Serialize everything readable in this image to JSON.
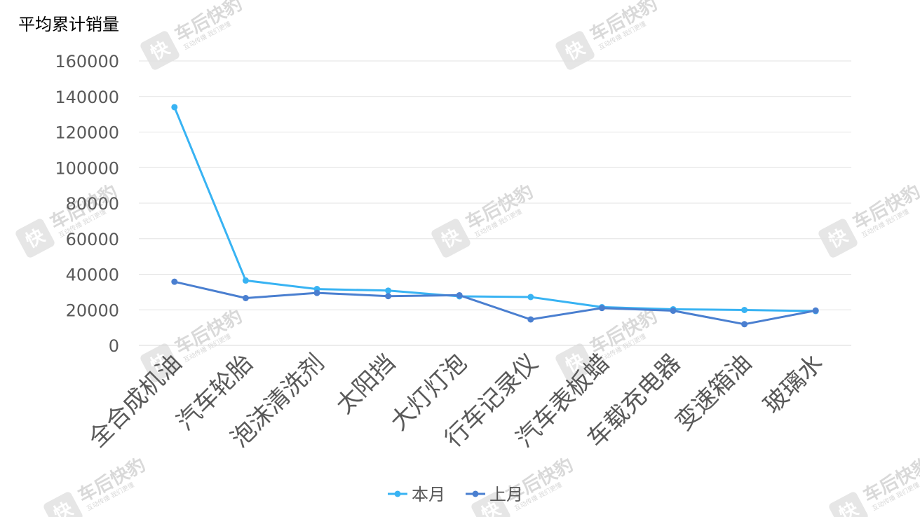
{
  "watermark": {
    "logo_char": "快",
    "brand": "车后快豹",
    "tagline": "互动传播  我们更懂"
  },
  "chart_data": {
    "type": "line",
    "title": "",
    "ylabel": "平均累计销量",
    "xlabel": "",
    "ylim": [
      0,
      160000
    ],
    "ytick_step": 20000,
    "grid": true,
    "legend_position": "bottom",
    "categories": [
      "全合成机油",
      "汽车轮胎",
      "泡沫清洗剂",
      "太阳挡",
      "大灯灯泡",
      "行车记录仪",
      "汽车表板蜡",
      "车载充电器",
      "变速箱油",
      "玻璃水"
    ],
    "series": [
      {
        "name": "本月",
        "color": "#38b3f3",
        "values": [
          134000,
          36500,
          31700,
          30800,
          27600,
          27200,
          21500,
          20300,
          19900,
          19300
        ]
      },
      {
        "name": "上月",
        "color": "#4a7fd0",
        "values": [
          35800,
          26600,
          29500,
          27700,
          28200,
          14600,
          21000,
          19500,
          11900,
          19600
        ]
      }
    ]
  }
}
